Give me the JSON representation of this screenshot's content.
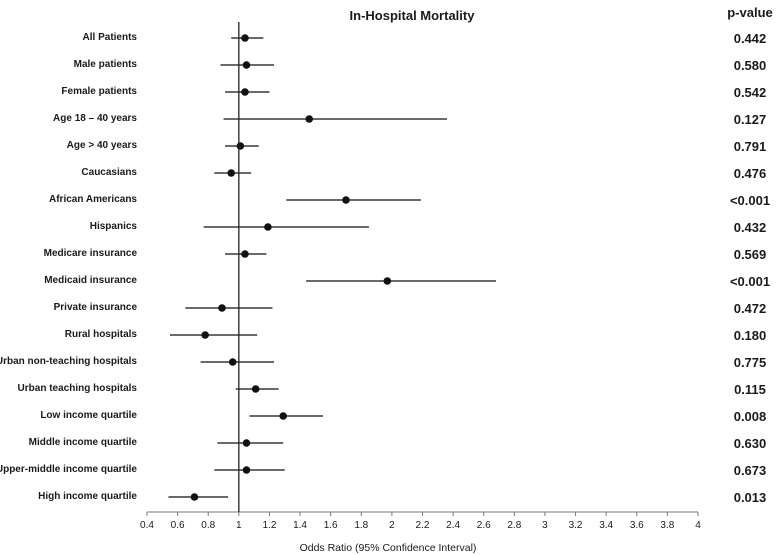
{
  "chart_data": {
    "type": "forest",
    "title": "In-Hospital Mortality",
    "pvalue_header": "p-value",
    "xlabel": "Odds Ratio (95% Confidence Interval)",
    "xlim": [
      0.4,
      4.0
    ],
    "reference_line": 1.0,
    "x_ticks": [
      "0.4",
      "0.6",
      "0.8",
      "1",
      "1.2",
      "1.4",
      "1.6",
      "1.8",
      "2",
      "2.2",
      "2.4",
      "2.6",
      "2.8",
      "3",
      "3.2",
      "3.4",
      "3.6",
      "3.8",
      "4"
    ],
    "rows": [
      {
        "label": "All Patients",
        "or": 1.04,
        "lo": 0.95,
        "hi": 1.16,
        "p": "0.442"
      },
      {
        "label": "Male patients",
        "or": 1.05,
        "lo": 0.88,
        "hi": 1.23,
        "p": "0.580"
      },
      {
        "label": "Female patients",
        "or": 1.04,
        "lo": 0.91,
        "hi": 1.2,
        "p": "0.542"
      },
      {
        "label": "Age 18 – 40 years",
        "or": 1.46,
        "lo": 0.9,
        "hi": 2.36,
        "p": "0.127"
      },
      {
        "label": "Age > 40 years",
        "or": 1.01,
        "lo": 0.91,
        "hi": 1.13,
        "p": "0.791"
      },
      {
        "label": "Caucasians",
        "or": 0.95,
        "lo": 0.84,
        "hi": 1.08,
        "p": "0.476"
      },
      {
        "label": "African Americans",
        "or": 1.7,
        "lo": 1.31,
        "hi": 2.19,
        "p": "<0.001"
      },
      {
        "label": "Hispanics",
        "or": 1.19,
        "lo": 0.77,
        "hi": 1.85,
        "p": "0.432"
      },
      {
        "label": "Medicare insurance",
        "or": 1.04,
        "lo": 0.91,
        "hi": 1.18,
        "p": "0.569"
      },
      {
        "label": "Medicaid insurance",
        "or": 1.97,
        "lo": 1.44,
        "hi": 2.68,
        "p": "<0.001"
      },
      {
        "label": "Private insurance",
        "or": 0.89,
        "lo": 0.65,
        "hi": 1.22,
        "p": "0.472"
      },
      {
        "label": "Rural hospitals",
        "or": 0.78,
        "lo": 0.55,
        "hi": 1.12,
        "p": "0.180"
      },
      {
        "label": "Urban non-teaching hospitals",
        "or": 0.96,
        "lo": 0.75,
        "hi": 1.23,
        "p": "0.775"
      },
      {
        "label": "Urban teaching hospitals",
        "or": 1.11,
        "lo": 0.98,
        "hi": 1.26,
        "p": "0.115"
      },
      {
        "label": "Low income quartile",
        "or": 1.29,
        "lo": 1.07,
        "hi": 1.55,
        "p": "0.008"
      },
      {
        "label": "Middle income quartile",
        "or": 1.05,
        "lo": 0.86,
        "hi": 1.29,
        "p": "0.630"
      },
      {
        "label": "Upper-middle income quartile",
        "or": 1.05,
        "lo": 0.84,
        "hi": 1.3,
        "p": "0.673"
      },
      {
        "label": "High income quartile",
        "or": 0.71,
        "lo": 0.54,
        "hi": 0.93,
        "p": "0.013"
      }
    ]
  }
}
